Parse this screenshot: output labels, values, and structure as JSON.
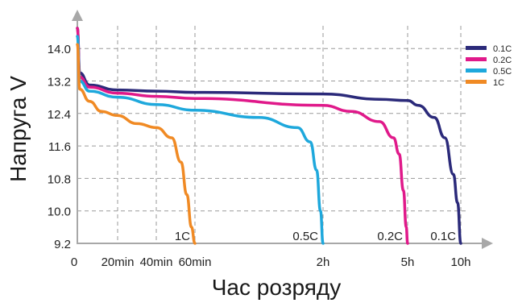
{
  "chart_data": {
    "type": "line",
    "xlabel": "Час розряду",
    "ylabel": "Напруга V",
    "y_ticks": [
      "9.2",
      "10.0",
      "10.8",
      "11.6",
      "12.4",
      "13.2",
      "14.0"
    ],
    "y_tick_values": [
      9.2,
      10.0,
      10.8,
      11.6,
      12.4,
      13.2,
      14.0
    ],
    "ylim": [
      9.2,
      14.6
    ],
    "x_ticks": [
      "0",
      "20min",
      "40min",
      "60min",
      "2h",
      "5h",
      "10h"
    ],
    "x_tick_values_hours": [
      0,
      0.333,
      0.667,
      1,
      2,
      5,
      10
    ],
    "x_scale": "non-uniform (time axis as printed)",
    "grid": true,
    "legend_position": "top-right",
    "series": [
      {
        "name": "0.1C",
        "color": "#2b2a7a",
        "curve_label": "0.1C",
        "points": [
          [
            0,
            14.5
          ],
          [
            0.02,
            13.4
          ],
          [
            0.1,
            13.1
          ],
          [
            0.33,
            12.98
          ],
          [
            0.67,
            12.95
          ],
          [
            1,
            12.92
          ],
          [
            2,
            12.88
          ],
          [
            4,
            12.75
          ],
          [
            5,
            12.72
          ],
          [
            6,
            12.6
          ],
          [
            7.5,
            12.3
          ],
          [
            8.5,
            11.8
          ],
          [
            9.3,
            10.9
          ],
          [
            9.7,
            10.2
          ],
          [
            10,
            9.2
          ]
        ]
      },
      {
        "name": "0.2C",
        "color": "#e0198a",
        "curve_label": "0.2C",
        "points": [
          [
            0,
            14.5
          ],
          [
            0.02,
            13.3
          ],
          [
            0.1,
            13.05
          ],
          [
            0.33,
            12.9
          ],
          [
            0.67,
            12.82
          ],
          [
            1,
            12.77
          ],
          [
            2,
            12.6
          ],
          [
            3,
            12.45
          ],
          [
            4,
            12.2
          ],
          [
            4.5,
            11.8
          ],
          [
            4.7,
            11.4
          ],
          [
            4.85,
            10.5
          ],
          [
            4.95,
            9.6
          ],
          [
            5,
            9.2
          ]
        ]
      },
      {
        "name": "0.5C",
        "color": "#1ea8dc",
        "curve_label": "0.5C",
        "points": [
          [
            0,
            14.3
          ],
          [
            0.02,
            13.2
          ],
          [
            0.1,
            12.95
          ],
          [
            0.33,
            12.8
          ],
          [
            0.67,
            12.62
          ],
          [
            1,
            12.48
          ],
          [
            1.5,
            12.3
          ],
          [
            1.8,
            12.05
          ],
          [
            1.9,
            11.7
          ],
          [
            1.95,
            11.0
          ],
          [
            1.98,
            10.0
          ],
          [
            2,
            9.2
          ]
        ]
      },
      {
        "name": "1C",
        "color": "#f08a24",
        "curve_label": "1C",
        "points": [
          [
            0,
            14.1
          ],
          [
            0.02,
            13.0
          ],
          [
            0.1,
            12.7
          ],
          [
            0.2,
            12.45
          ],
          [
            0.33,
            12.35
          ],
          [
            0.5,
            12.15
          ],
          [
            0.67,
            12.05
          ],
          [
            0.8,
            11.8
          ],
          [
            0.88,
            11.2
          ],
          [
            0.93,
            10.4
          ],
          [
            0.97,
            9.6
          ],
          [
            1,
            9.2
          ]
        ]
      }
    ]
  }
}
